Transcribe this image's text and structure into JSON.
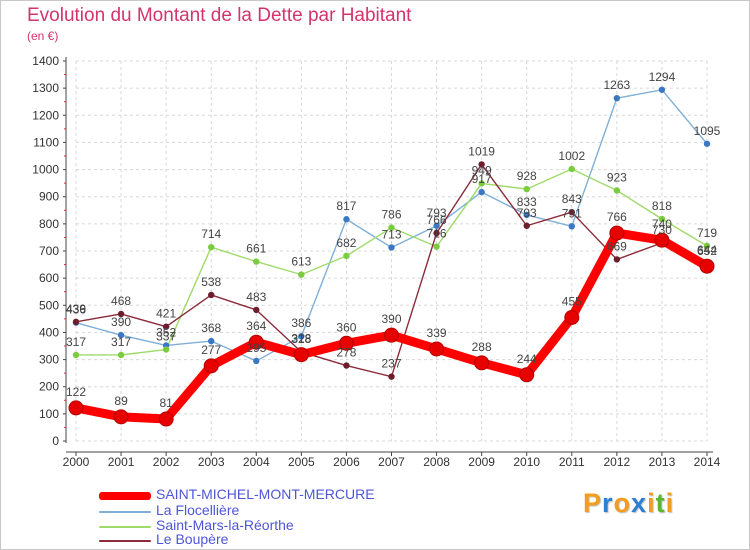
{
  "header": {
    "title": "Evolution du Montant de la Dette par Habitant",
    "unit": "(en €)"
  },
  "logo": {
    "text": "Proxiti",
    "colors": [
      "#f39c1f",
      "#2e7fd1",
      "#f39c1f",
      "#2e7fd1",
      "#f39c1f",
      "#5bb82e",
      "#f39c1f"
    ]
  },
  "chart_data": {
    "type": "line",
    "title": "Evolution du Montant de la Dette par Habitant",
    "ylabel": "(en €)",
    "xlabel": "",
    "ylim": [
      0,
      1400
    ],
    "yticks": [
      0,
      100,
      200,
      300,
      400,
      500,
      600,
      700,
      800,
      900,
      1000,
      1100,
      1200,
      1300,
      1400
    ],
    "grid": true,
    "legend_position": "bottom-left",
    "x": [
      "2000",
      "2001",
      "2002",
      "2003",
      "2004",
      "2005",
      "2006",
      "2007",
      "2008",
      "2009",
      "2010",
      "2011",
      "2012",
      "2013",
      "2014"
    ],
    "series": [
      {
        "name": "SAINT-MICHEL-MONT-MERCURE",
        "color": "#ff0000",
        "marker": "#e60000",
        "thick": true,
        "values": [
          122,
          89,
          81,
          277,
          364,
          318,
          360,
          390,
          339,
          288,
          244,
          455,
          766,
          740,
          644
        ]
      },
      {
        "name": "La Flocellière",
        "color": "#7fb0d8",
        "marker": "#3a78c2",
        "thick": false,
        "values": [
          436,
          390,
          352,
          368,
          295,
          386,
          817,
          713,
          793,
          917,
          833,
          791,
          1263,
          1294,
          1095
        ]
      },
      {
        "name": "Saint-Mars-la-Réorthe",
        "color": "#9edb6a",
        "marker": "#7acc3e",
        "thick": false,
        "values": [
          317,
          317,
          337,
          714,
          661,
          613,
          682,
          786,
          716,
          949,
          928,
          1002,
          923,
          818,
          719
        ]
      },
      {
        "name": "Le Boupère",
        "color": "#8a2b3b",
        "marker": "#6e1d2c",
        "thick": false,
        "values": [
          439,
          468,
          421,
          538,
          483,
          328,
          278,
          237,
          766,
          1019,
          793,
          843,
          669,
          730,
          652
        ]
      }
    ]
  }
}
